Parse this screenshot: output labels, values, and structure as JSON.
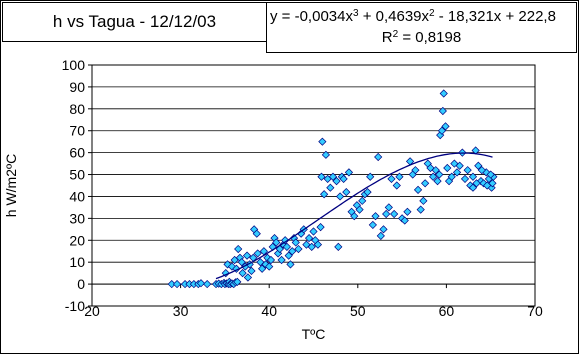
{
  "chart_data": {
    "type": "scatter",
    "title": "h vs Tagua - 12/12/03",
    "xlabel": "TºC",
    "ylabel": "h W/m2ºC",
    "xlim": [
      20,
      70
    ],
    "ylim": [
      -10,
      100
    ],
    "xticks": [
      "20",
      "30",
      "40",
      "50",
      "60",
      "70"
    ],
    "yticks": [
      "-10",
      "0",
      "10",
      "20",
      "30",
      "40",
      "50",
      "60",
      "70",
      "80",
      "90",
      "100"
    ],
    "grid": true,
    "marker_color": "#33CCFF",
    "trendline_color": "#000080",
    "trendline": {
      "type": "polynomial",
      "equation_parts": [
        "y = -0,0034x",
        "3",
        " + 0,4639x",
        "2",
        " - 18,321x + 222,8"
      ],
      "r2_parts": [
        "R",
        "2",
        " = 0,8198"
      ],
      "coefficients": [
        -0.0034,
        0.4639,
        -18.321,
        222.8
      ]
    },
    "points": [
      [
        29.0,
        0
      ],
      [
        29.6,
        0
      ],
      [
        30.5,
        0
      ],
      [
        31.0,
        0
      ],
      [
        31.5,
        0
      ],
      [
        32.0,
        0
      ],
      [
        32.3,
        0.4
      ],
      [
        33.0,
        0
      ],
      [
        34.0,
        0
      ],
      [
        34.3,
        0.2
      ],
      [
        34.6,
        0
      ],
      [
        34.9,
        0.5
      ],
      [
        35.0,
        0
      ],
      [
        35.2,
        0.3
      ],
      [
        35.4,
        0
      ],
      [
        35.5,
        1
      ],
      [
        35.6,
        0
      ],
      [
        35.8,
        0.3
      ],
      [
        36.0,
        0
      ],
      [
        36.2,
        0.8
      ],
      [
        36.4,
        1
      ],
      [
        35.1,
        5
      ],
      [
        35.3,
        9
      ],
      [
        35.8,
        8
      ],
      [
        36.1,
        11
      ],
      [
        36.3,
        7
      ],
      [
        36.7,
        12
      ],
      [
        36.9,
        10
      ],
      [
        37.0,
        5
      ],
      [
        36.5,
        16
      ],
      [
        37.3,
        8
      ],
      [
        37.5,
        13
      ],
      [
        37.6,
        3
      ],
      [
        37.8,
        9
      ],
      [
        38.0,
        6
      ],
      [
        38.2,
        12
      ],
      [
        38.3,
        25
      ],
      [
        38.6,
        23
      ],
      [
        38.7,
        14
      ],
      [
        39.0,
        10
      ],
      [
        39.2,
        7
      ],
      [
        39.4,
        15
      ],
      [
        39.6,
        9
      ],
      [
        39.8,
        12
      ],
      [
        40.0,
        8
      ],
      [
        40.2,
        11
      ],
      [
        40.4,
        17
      ],
      [
        40.6,
        21
      ],
      [
        40.8,
        19
      ],
      [
        41.0,
        14
      ],
      [
        41.2,
        16
      ],
      [
        41.4,
        11
      ],
      [
        41.6,
        18
      ],
      [
        41.8,
        20
      ],
      [
        42.0,
        17
      ],
      [
        42.2,
        13
      ],
      [
        42.4,
        9
      ],
      [
        42.6,
        15
      ],
      [
        42.8,
        21
      ],
      [
        43.0,
        19
      ],
      [
        43.3,
        16
      ],
      [
        43.6,
        23
      ],
      [
        43.9,
        25
      ],
      [
        44.2,
        18
      ],
      [
        44.5,
        21
      ],
      [
        44.8,
        17
      ],
      [
        45.0,
        24
      ],
      [
        45.2,
        20
      ],
      [
        45.5,
        18
      ],
      [
        45.8,
        26
      ],
      [
        45.9,
        49
      ],
      [
        46.0,
        65
      ],
      [
        46.2,
        41
      ],
      [
        46.4,
        59
      ],
      [
        46.6,
        48
      ],
      [
        46.9,
        44
      ],
      [
        47.2,
        49
      ],
      [
        47.6,
        47
      ],
      [
        47.8,
        17
      ],
      [
        48.0,
        40
      ],
      [
        48.2,
        49
      ],
      [
        48.4,
        48
      ],
      [
        48.7,
        42
      ],
      [
        49.0,
        51
      ],
      [
        49.3,
        33
      ],
      [
        49.6,
        31
      ],
      [
        49.9,
        36
      ],
      [
        50.2,
        34
      ],
      [
        50.5,
        38
      ],
      [
        50.8,
        41
      ],
      [
        51.1,
        42
      ],
      [
        51.4,
        49
      ],
      [
        51.7,
        27
      ],
      [
        52.0,
        31
      ],
      [
        52.3,
        58
      ],
      [
        52.6,
        22
      ],
      [
        52.9,
        25
      ],
      [
        53.2,
        32
      ],
      [
        53.5,
        35
      ],
      [
        53.8,
        48
      ],
      [
        54.1,
        32
      ],
      [
        54.4,
        45
      ],
      [
        54.7,
        49
      ],
      [
        55.0,
        30
      ],
      [
        55.3,
        29
      ],
      [
        55.6,
        33
      ],
      [
        55.9,
        56
      ],
      [
        56.2,
        50
      ],
      [
        56.5,
        52
      ],
      [
        56.8,
        43
      ],
      [
        57.1,
        34
      ],
      [
        57.4,
        38
      ],
      [
        57.6,
        46
      ],
      [
        57.9,
        55
      ],
      [
        58.2,
        53
      ],
      [
        58.5,
        49
      ],
      [
        58.8,
        52
      ],
      [
        59.0,
        47
      ],
      [
        59.2,
        50
      ],
      [
        59.3,
        68
      ],
      [
        59.5,
        70
      ],
      [
        59.6,
        79
      ],
      [
        59.7,
        87
      ],
      [
        59.9,
        72
      ],
      [
        60.1,
        53
      ],
      [
        60.3,
        47
      ],
      [
        60.6,
        49
      ],
      [
        60.9,
        55
      ],
      [
        61.2,
        51
      ],
      [
        61.5,
        54
      ],
      [
        61.8,
        60
      ],
      [
        62.1,
        48
      ],
      [
        62.4,
        52
      ],
      [
        62.7,
        45
      ],
      [
        63.0,
        49
      ],
      [
        63.3,
        61
      ],
      [
        63.6,
        54
      ],
      [
        63.9,
        47
      ],
      [
        64.2,
        46
      ],
      [
        64.5,
        51
      ],
      [
        64.8,
        48
      ],
      [
        65.1,
        44
      ],
      [
        65.3,
        49
      ],
      [
        64.0,
        52
      ],
      [
        63.0,
        44
      ],
      [
        63.4,
        46
      ],
      [
        64.6,
        45
      ],
      [
        65.0,
        50
      ],
      [
        65.2,
        46
      ]
    ]
  }
}
